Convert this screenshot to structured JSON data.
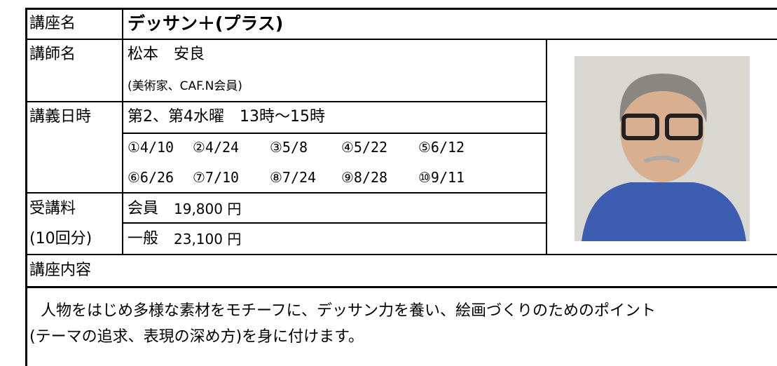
{
  "course": {
    "label": "講座名",
    "value": "デッサン＋(プラス)"
  },
  "instructor": {
    "label": "講師名",
    "name": "松本　安良",
    "note": "(美術家、CAF.N会員)"
  },
  "schedule": {
    "label": "講義日時",
    "summary": "第2、第4水曜　13時～15時",
    "dates": [
      "①4/10",
      "②4/24",
      "③5/8",
      "④5/22",
      "⑤6/12",
      "⑥6/26",
      "⑦7/10",
      "⑧7/24",
      "⑨8/28",
      "⑩9/11"
    ]
  },
  "fee": {
    "label": "受講料",
    "label_note": "(10回分)",
    "member": {
      "label": "会員",
      "amount": "19,800 円"
    },
    "general": {
      "label": "一般",
      "amount": "23,100 円"
    }
  },
  "content": {
    "label": "講座内容",
    "text_lines": [
      "人物をはじめ多様な素材をモチーフに、デッサン力を養い、絵画づくりのためのポイント",
      "(テーマの追求、表現の深め方)を身に付けます。"
    ]
  }
}
